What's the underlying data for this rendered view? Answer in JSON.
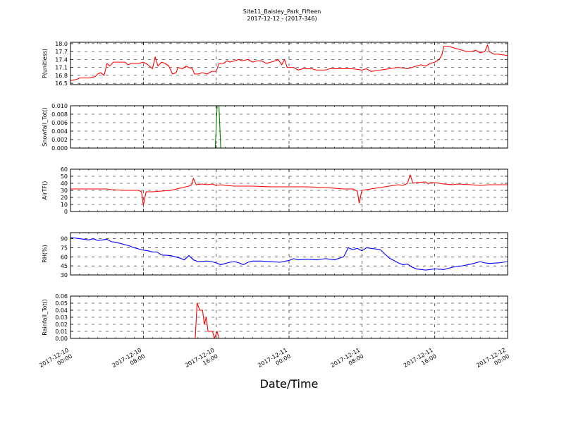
{
  "chart_data": {
    "type": "line",
    "title": "Site11_Baisley_Park_Fifteen",
    "subtitle": "2017-12-12 - (2017-346)",
    "xlabel": "Date/Time",
    "x_ticks": [
      {
        "line1": "2017-12-10",
        "line2": "00:00",
        "h": 0
      },
      {
        "line1": "2017-12-10",
        "line2": "08:00",
        "h": 8
      },
      {
        "line1": "2017-12-10",
        "line2": "16:00",
        "h": 16
      },
      {
        "line1": "2017-12-11",
        "line2": "00:00",
        "h": 24
      },
      {
        "line1": "2017-12-11",
        "line2": "08:00",
        "h": 32
      },
      {
        "line1": "2017-12-11",
        "line2": "16:00",
        "h": 40
      },
      {
        "line1": "2017-12-12",
        "line2": "00:00",
        "h": 48
      }
    ],
    "x_range_hours": [
      0,
      48
    ],
    "grid": true,
    "panels": [
      {
        "ylabel": "P(unitless)",
        "color": "#ff0000",
        "ylim": [
          16.45,
          18.05
        ],
        "yticks": [
          "16.5",
          "16.8",
          "17.1",
          "17.4",
          "17.7",
          "18.0"
        ],
        "points": [
          [
            0,
            16.6
          ],
          [
            0.7,
            16.65
          ],
          [
            1,
            16.7
          ],
          [
            2,
            16.7
          ],
          [
            2.7,
            16.75
          ],
          [
            3,
            16.85
          ],
          [
            3.3,
            16.9
          ],
          [
            3.7,
            16.8
          ],
          [
            4,
            17.25
          ],
          [
            4.3,
            17.15
          ],
          [
            4.7,
            17.3
          ],
          [
            5,
            17.3
          ],
          [
            6,
            17.3
          ],
          [
            6.3,
            17.2
          ],
          [
            6.7,
            17.25
          ],
          [
            7.5,
            17.25
          ],
          [
            8,
            17.3
          ],
          [
            8.5,
            17.2
          ],
          [
            9,
            17.05
          ],
          [
            9.3,
            17.5
          ],
          [
            9.6,
            17.15
          ],
          [
            10,
            17.3
          ],
          [
            10.4,
            17.25
          ],
          [
            10.8,
            17.15
          ],
          [
            11.2,
            16.85
          ],
          [
            11.6,
            16.9
          ],
          [
            11.8,
            17.1
          ],
          [
            12.3,
            17.05
          ],
          [
            12.7,
            17.15
          ],
          [
            13,
            17.1
          ],
          [
            13.4,
            17.05
          ],
          [
            13.6,
            16.85
          ],
          [
            14,
            16.85
          ],
          [
            14.5,
            16.9
          ],
          [
            15,
            16.85
          ],
          [
            15.5,
            16.95
          ],
          [
            16,
            16.95
          ],
          [
            16.3,
            17.25
          ],
          [
            16.8,
            17.25
          ],
          [
            17.2,
            17.35
          ],
          [
            17.5,
            17.3
          ],
          [
            18.5,
            17.4
          ],
          [
            18.8,
            17.35
          ],
          [
            19.5,
            17.4
          ],
          [
            20,
            17.3
          ],
          [
            20.5,
            17.35
          ],
          [
            21,
            17.35
          ],
          [
            21.5,
            17.25
          ],
          [
            22,
            17.3
          ],
          [
            22.5,
            17.35
          ],
          [
            22.8,
            17.4
          ],
          [
            23.2,
            17.2
          ],
          [
            23.5,
            17.4
          ],
          [
            23.8,
            17.1
          ],
          [
            24.5,
            17.1
          ],
          [
            25,
            17.0
          ],
          [
            25.5,
            17.05
          ],
          [
            26.5,
            17.05
          ],
          [
            27,
            17.0
          ],
          [
            28,
            17.0
          ],
          [
            28.5,
            17.05
          ],
          [
            29,
            17.05
          ],
          [
            30,
            17.05
          ],
          [
            31,
            17.05
          ],
          [
            32,
            17.0
          ],
          [
            32.5,
            17.05
          ],
          [
            33,
            16.95
          ],
          [
            34,
            17.0
          ],
          [
            35,
            17.05
          ],
          [
            36,
            17.1
          ],
          [
            37,
            17.05
          ],
          [
            37.5,
            17.1
          ],
          [
            38,
            17.15
          ],
          [
            38.5,
            17.2
          ],
          [
            39,
            17.15
          ],
          [
            39.5,
            17.25
          ],
          [
            40,
            17.3
          ],
          [
            40.5,
            17.4
          ],
          [
            40.8,
            17.6
          ],
          [
            41,
            17.9
          ],
          [
            41.5,
            17.9
          ],
          [
            42,
            17.85
          ],
          [
            43,
            17.75
          ],
          [
            43.5,
            17.7
          ],
          [
            44,
            17.7
          ],
          [
            44.5,
            17.75
          ],
          [
            45,
            17.65
          ],
          [
            45.5,
            17.7
          ],
          [
            45.8,
            17.95
          ],
          [
            46,
            17.7
          ],
          [
            46.5,
            17.6
          ],
          [
            47,
            17.6
          ],
          [
            48,
            17.55
          ]
        ]
      },
      {
        "ylabel": "Snowfall_Tot()",
        "color": "#008000",
        "ylim": [
          0,
          0.01
        ],
        "yticks": [
          "0.000",
          "0.002",
          "0.004",
          "0.006",
          "0.008",
          "0.010"
        ],
        "points": [
          [
            0,
            0
          ],
          [
            15.9,
            0
          ],
          [
            16.1,
            0.01
          ],
          [
            16.3,
            0.01
          ],
          [
            16.5,
            0
          ],
          [
            48,
            0
          ]
        ]
      },
      {
        "ylabel": "AirTF()",
        "color": "#ff0000",
        "ylim": [
          0,
          60
        ],
        "yticks": [
          "0",
          "10",
          "20",
          "30",
          "40",
          "50",
          "60"
        ],
        "points": [
          [
            0,
            32
          ],
          [
            2,
            32
          ],
          [
            4,
            32
          ],
          [
            4.5,
            31
          ],
          [
            6,
            30
          ],
          [
            7.5,
            30
          ],
          [
            7.8,
            28
          ],
          [
            8,
            9
          ],
          [
            8.3,
            28
          ],
          [
            9,
            28
          ],
          [
            10,
            29
          ],
          [
            11,
            30
          ],
          [
            12,
            33
          ],
          [
            13,
            36
          ],
          [
            13.3,
            38
          ],
          [
            13.5,
            47
          ],
          [
            13.8,
            38
          ],
          [
            14.5,
            39
          ],
          [
            15,
            38
          ],
          [
            15.5,
            39
          ],
          [
            16,
            37
          ],
          [
            16.5,
            38
          ],
          [
            17,
            37
          ],
          [
            18,
            36
          ],
          [
            20,
            36
          ],
          [
            22,
            35
          ],
          [
            24,
            35
          ],
          [
            26,
            35
          ],
          [
            28,
            34
          ],
          [
            29,
            33
          ],
          [
            30,
            32
          ],
          [
            31,
            32
          ],
          [
            31.5,
            29
          ],
          [
            31.7,
            12
          ],
          [
            32,
            30
          ],
          [
            33,
            32
          ],
          [
            34,
            34
          ],
          [
            35,
            36
          ],
          [
            36,
            38
          ],
          [
            36.5,
            37
          ],
          [
            37,
            40
          ],
          [
            37.3,
            52
          ],
          [
            37.6,
            40
          ],
          [
            38,
            41
          ],
          [
            39,
            42
          ],
          [
            39.3,
            39
          ],
          [
            39.5,
            41
          ],
          [
            40,
            41
          ],
          [
            41,
            39
          ],
          [
            42,
            38
          ],
          [
            42.5,
            39
          ],
          [
            44,
            38
          ],
          [
            45,
            37
          ],
          [
            46,
            38
          ],
          [
            48,
            38
          ]
        ]
      },
      {
        "ylabel": "RH(%)",
        "color": "#0000ff",
        "ylim": [
          30,
          100
        ],
        "yticks": [
          "30",
          "45",
          "60",
          "75",
          "90"
        ],
        "points": [
          [
            0,
            92
          ],
          [
            0.5,
            91
          ],
          [
            1,
            90
          ],
          [
            2,
            88
          ],
          [
            2.5,
            90
          ],
          [
            3,
            87
          ],
          [
            3.5,
            88
          ],
          [
            4,
            89
          ],
          [
            4.5,
            85
          ],
          [
            5,
            84
          ],
          [
            5.5,
            82
          ],
          [
            6,
            80
          ],
          [
            6.5,
            78
          ],
          [
            7,
            75
          ],
          [
            7.5,
            73
          ],
          [
            8,
            71
          ],
          [
            8.5,
            70
          ],
          [
            9,
            68
          ],
          [
            9.5,
            68
          ],
          [
            10,
            63
          ],
          [
            11,
            62
          ],
          [
            12,
            58
          ],
          [
            12.5,
            55
          ],
          [
            13,
            62
          ],
          [
            13.5,
            55
          ],
          [
            14,
            52
          ],
          [
            15,
            53
          ],
          [
            15.5,
            52
          ],
          [
            16,
            50
          ],
          [
            16.5,
            47
          ],
          [
            17,
            49
          ],
          [
            17.5,
            51
          ],
          [
            18,
            52
          ],
          [
            18.5,
            50
          ],
          [
            19,
            47
          ],
          [
            19.5,
            51
          ],
          [
            20,
            53
          ],
          [
            21,
            53
          ],
          [
            22,
            52
          ],
          [
            23,
            51
          ],
          [
            24,
            54
          ],
          [
            24.5,
            57
          ],
          [
            25,
            55
          ],
          [
            26,
            56
          ],
          [
            27,
            55
          ],
          [
            28,
            57
          ],
          [
            29,
            55
          ],
          [
            30,
            60
          ],
          [
            30.5,
            75
          ],
          [
            31,
            72
          ],
          [
            31.5,
            74
          ],
          [
            32,
            70
          ],
          [
            32.5,
            75
          ],
          [
            33,
            74
          ],
          [
            34,
            72
          ],
          [
            35,
            58
          ],
          [
            36,
            50
          ],
          [
            36.5,
            47
          ],
          [
            37,
            48
          ],
          [
            37.5,
            43
          ],
          [
            38,
            40
          ],
          [
            38.5,
            39
          ],
          [
            39,
            38
          ],
          [
            40,
            40
          ],
          [
            41,
            39
          ],
          [
            42,
            43
          ],
          [
            43,
            45
          ],
          [
            44,
            48
          ],
          [
            45,
            52
          ],
          [
            45.5,
            50
          ],
          [
            46,
            49
          ],
          [
            47,
            50
          ],
          [
            48,
            52
          ]
        ]
      },
      {
        "ylabel": "Rainfall_Tot()",
        "color": "#ff0000",
        "ylim": [
          0,
          0.06
        ],
        "yticks": [
          "0.00",
          "0.01",
          "0.02",
          "0.03",
          "0.04",
          "0.05",
          "0.06"
        ],
        "points": [
          [
            0,
            0
          ],
          [
            13.7,
            0
          ],
          [
            13.9,
            0.05
          ],
          [
            14.2,
            0.04
          ],
          [
            14.5,
            0.04
          ],
          [
            14.7,
            0.02
          ],
          [
            14.9,
            0.03
          ],
          [
            15.1,
            0.01
          ],
          [
            15.6,
            0.01
          ],
          [
            15.8,
            0
          ],
          [
            16.1,
            0.01
          ],
          [
            16.3,
            0
          ],
          [
            48,
            0
          ]
        ]
      }
    ]
  }
}
